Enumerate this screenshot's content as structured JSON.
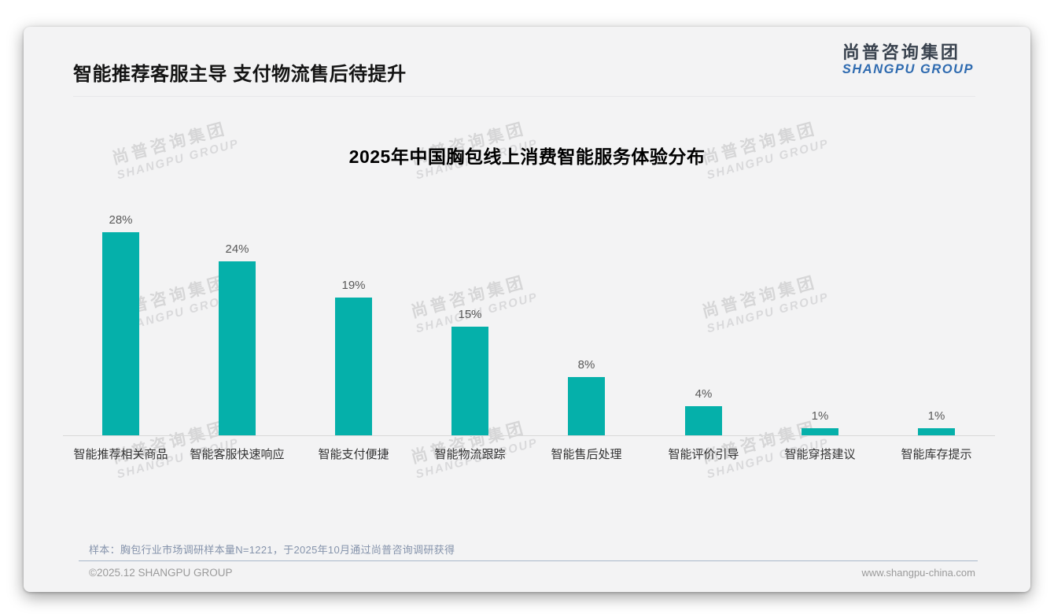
{
  "header": {
    "title": "智能推荐客服主导 支付物流售后待提升"
  },
  "logo": {
    "cn": "尚普咨询集团",
    "en": "SHANGPU GROUP"
  },
  "watermark": {
    "line1": "尚普咨询集团",
    "line2": "SHANGPU GROUP"
  },
  "chart_data": {
    "type": "bar",
    "title": "2025年中国胸包线上消费智能服务体验分布",
    "categories": [
      "智能推荐相关商品",
      "智能客服快速响应",
      "智能支付便捷",
      "智能物流跟踪",
      "智能售后处理",
      "智能评价引导",
      "智能穿搭建议",
      "智能库存提示"
    ],
    "values": [
      28,
      24,
      19,
      15,
      8,
      4,
      1,
      1
    ],
    "unit": "%",
    "xlabel": "",
    "ylabel": "",
    "ylim": [
      0,
      30
    ],
    "grid": false,
    "legend": "none",
    "bar_color": "#05b0aa",
    "value_label_color": "#595959"
  },
  "footer": {
    "note": "样本：胸包行业市场调研样本量N=1221，于2025年10月通过尚普咨询调研获得",
    "copyright": "©2025.12 SHANGPU GROUP",
    "website": "www.shangpu-china.com"
  }
}
